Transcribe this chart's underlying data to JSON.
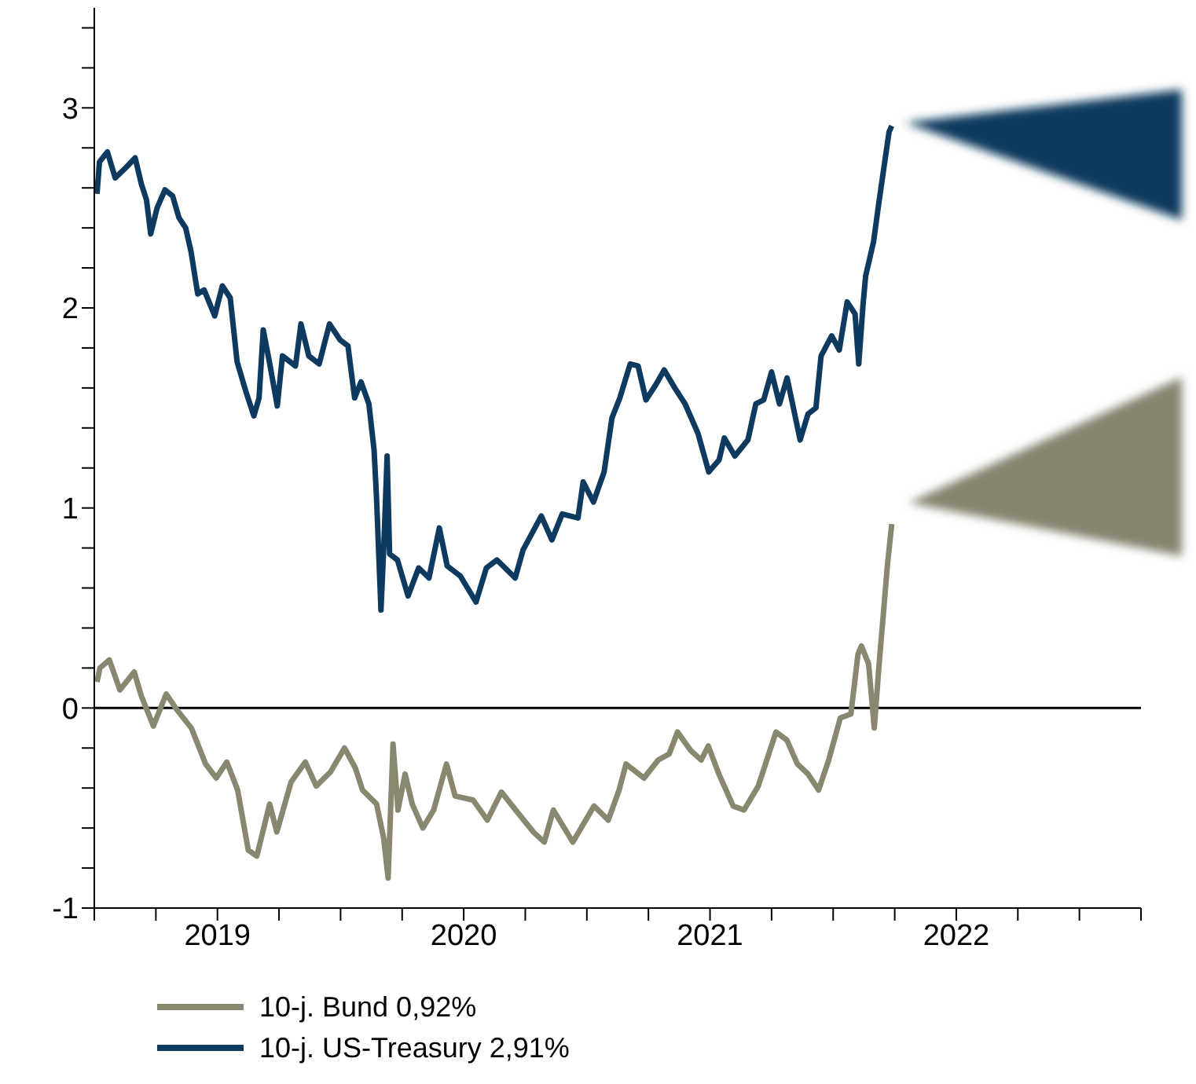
{
  "chart_data": {
    "type": "line",
    "legend": "bottom",
    "xlim": [
      2019,
      2023.25
    ],
    "xticks": [
      {
        "value": 2019,
        "label": null
      },
      {
        "value": 2019.25,
        "label": null
      },
      {
        "value": 2019.5,
        "label": "2019"
      },
      {
        "value": 2019.75,
        "label": null
      },
      {
        "value": 2020,
        "label": null
      },
      {
        "value": 2020.25,
        "label": null
      },
      {
        "value": 2020.5,
        "label": "2020"
      },
      {
        "value": 2020.75,
        "label": null
      },
      {
        "value": 2021,
        "label": null
      },
      {
        "value": 2021.25,
        "label": null
      },
      {
        "value": 2021.5,
        "label": "2021"
      },
      {
        "value": 2021.75,
        "label": null
      },
      {
        "value": 2022,
        "label": null
      },
      {
        "value": 2022.25,
        "label": null
      },
      {
        "value": 2022.5,
        "label": "2022"
      },
      {
        "value": 2022.75,
        "label": null
      },
      {
        "value": 2023,
        "label": null
      },
      {
        "value": 2023.25,
        "label": null
      }
    ],
    "ylim": [
      -1,
      3.5
    ],
    "yticks": [
      -1,
      {
        "value": -0.8,
        "label": null
      },
      {
        "value": -0.6,
        "label": null
      },
      {
        "value": -0.4,
        "label": null
      },
      {
        "value": -0.2,
        "label": null
      },
      0,
      {
        "value": 0.2,
        "label": null
      },
      {
        "value": 0.4,
        "label": null
      },
      {
        "value": 0.6,
        "label": null
      },
      {
        "value": 0.8,
        "label": null
      },
      1,
      {
        "value": 1.2,
        "label": null
      },
      {
        "value": 1.4,
        "label": null
      },
      {
        "value": 1.6,
        "label": null
      },
      {
        "value": 1.8,
        "label": null
      },
      2,
      {
        "value": 2.2,
        "label": null
      },
      {
        "value": 2.4,
        "label": null
      },
      {
        "value": 2.6,
        "label": null
      },
      {
        "value": 2.8,
        "label": null
      },
      3,
      {
        "value": 3.2,
        "label": null
      },
      {
        "value": 3.4,
        "label": null
      }
    ],
    "ref_lines": [
      {
        "axis": "y",
        "value": 0,
        "color": "#000000"
      }
    ],
    "series": [
      {
        "name": "10-j. Bund 0,92%",
        "color": "#8a8770",
        "x": [
          2019.011,
          2019.023,
          2019.061,
          2019.104,
          2019.162,
          2019.191,
          2019.24,
          2019.292,
          2019.336,
          2019.394,
          2019.452,
          2019.495,
          2019.538,
          2019.582,
          2019.625,
          2019.66,
          2019.712,
          2019.741,
          2019.799,
          2019.857,
          2019.901,
          2019.959,
          2020.016,
          2020.06,
          2020.089,
          2020.146,
          2020.175,
          2020.193,
          2020.213,
          2020.233,
          2020.262,
          2020.291,
          2020.334,
          2020.378,
          2020.43,
          2020.465,
          2020.538,
          2020.596,
          2020.653,
          2020.711,
          2020.783,
          2020.827,
          2020.864,
          2020.943,
          2021.029,
          2021.087,
          2021.131,
          2021.159,
          2021.232,
          2021.29,
          2021.334,
          2021.368,
          2021.42,
          2021.464,
          2021.493,
          2021.536,
          2021.594,
          2021.638,
          2021.696,
          2021.768,
          2021.812,
          2021.855,
          2021.898,
          2021.941,
          2021.982,
          2022.029,
          2022.072,
          2022.101,
          2022.115,
          2022.144,
          2022.167,
          2022.188,
          2022.206,
          2022.22,
          2022.238
        ],
        "values": [
          0.13,
          0.2,
          0.24,
          0.09,
          0.18,
          0.06,
          -0.09,
          0.07,
          -0.01,
          -0.1,
          -0.28,
          -0.35,
          -0.27,
          -0.41,
          -0.71,
          -0.74,
          -0.48,
          -0.62,
          -0.37,
          -0.27,
          -0.39,
          -0.32,
          -0.2,
          -0.3,
          -0.41,
          -0.48,
          -0.65,
          -0.85,
          -0.18,
          -0.51,
          -0.33,
          -0.48,
          -0.6,
          -0.51,
          -0.28,
          -0.44,
          -0.46,
          -0.56,
          -0.42,
          -0.51,
          -0.62,
          -0.67,
          -0.51,
          -0.67,
          -0.49,
          -0.56,
          -0.41,
          -0.28,
          -0.35,
          -0.26,
          -0.23,
          -0.12,
          -0.21,
          -0.26,
          -0.19,
          -0.33,
          -0.49,
          -0.51,
          -0.39,
          -0.12,
          -0.16,
          -0.28,
          -0.33,
          -0.41,
          -0.26,
          -0.05,
          -0.03,
          0.27,
          0.31,
          0.22,
          -0.1,
          0.24,
          0.5,
          0.71,
          0.92
        ]
      },
      {
        "name": "10-j. US-Treasury 2,91%",
        "color": "#0d3a5e",
        "x": [
          2019.011,
          2019.021,
          2019.053,
          2019.085,
          2019.127,
          2019.166,
          2019.191,
          2019.212,
          2019.229,
          2019.255,
          2019.287,
          2019.318,
          2019.344,
          2019.371,
          2019.393,
          2019.42,
          2019.446,
          2019.489,
          2019.52,
          2019.552,
          2019.58,
          2019.616,
          2019.648,
          2019.669,
          2019.686,
          2019.711,
          2019.743,
          2019.764,
          2019.817,
          2019.839,
          2019.871,
          2019.913,
          2019.955,
          2019.998,
          2020.03,
          2020.057,
          2020.083,
          2020.115,
          2020.136,
          2020.146,
          2020.164,
          2020.176,
          2020.189,
          2020.199,
          2020.231,
          2020.274,
          2020.317,
          2020.359,
          2020.401,
          2020.433,
          2020.486,
          2020.55,
          2020.592,
          2020.635,
          2020.709,
          2020.741,
          2020.815,
          2020.858,
          2020.9,
          2020.964,
          2020.985,
          2021.027,
          2021.07,
          2021.102,
          2021.134,
          2021.176,
          2021.208,
          2021.24,
          2021.282,
          2021.314,
          2021.357,
          2021.399,
          2021.452,
          2021.495,
          2021.537,
          2021.558,
          2021.601,
          2021.654,
          2021.686,
          2021.718,
          2021.75,
          2021.782,
          2021.813,
          2021.866,
          2021.898,
          2021.93,
          2021.951,
          2021.994,
          2022.025,
          2022.057,
          2022.089,
          2022.104,
          2022.121,
          2022.132,
          2022.164,
          2022.185,
          2022.206,
          2022.227,
          2022.238
        ],
        "values": [
          2.57,
          2.73,
          2.78,
          2.65,
          2.7,
          2.75,
          2.62,
          2.54,
          2.37,
          2.5,
          2.59,
          2.56,
          2.45,
          2.4,
          2.28,
          2.07,
          2.09,
          1.96,
          2.11,
          2.05,
          1.73,
          1.58,
          1.46,
          1.55,
          1.89,
          1.73,
          1.51,
          1.76,
          1.71,
          1.92,
          1.76,
          1.72,
          1.92,
          1.84,
          1.81,
          1.55,
          1.63,
          1.52,
          1.29,
          1.05,
          0.49,
          0.82,
          1.26,
          0.77,
          0.74,
          0.56,
          0.7,
          0.65,
          0.9,
          0.71,
          0.66,
          0.53,
          0.7,
          0.74,
          0.65,
          0.79,
          0.96,
          0.84,
          0.97,
          0.95,
          1.13,
          1.03,
          1.18,
          1.45,
          1.55,
          1.72,
          1.71,
          1.54,
          1.62,
          1.69,
          1.6,
          1.52,
          1.37,
          1.18,
          1.24,
          1.35,
          1.26,
          1.34,
          1.52,
          1.54,
          1.68,
          1.52,
          1.65,
          1.34,
          1.47,
          1.5,
          1.76,
          1.86,
          1.79,
          2.03,
          1.97,
          1.72,
          2.01,
          2.16,
          2.33,
          2.52,
          2.7,
          2.88,
          2.91
        ]
      }
    ]
  }
}
